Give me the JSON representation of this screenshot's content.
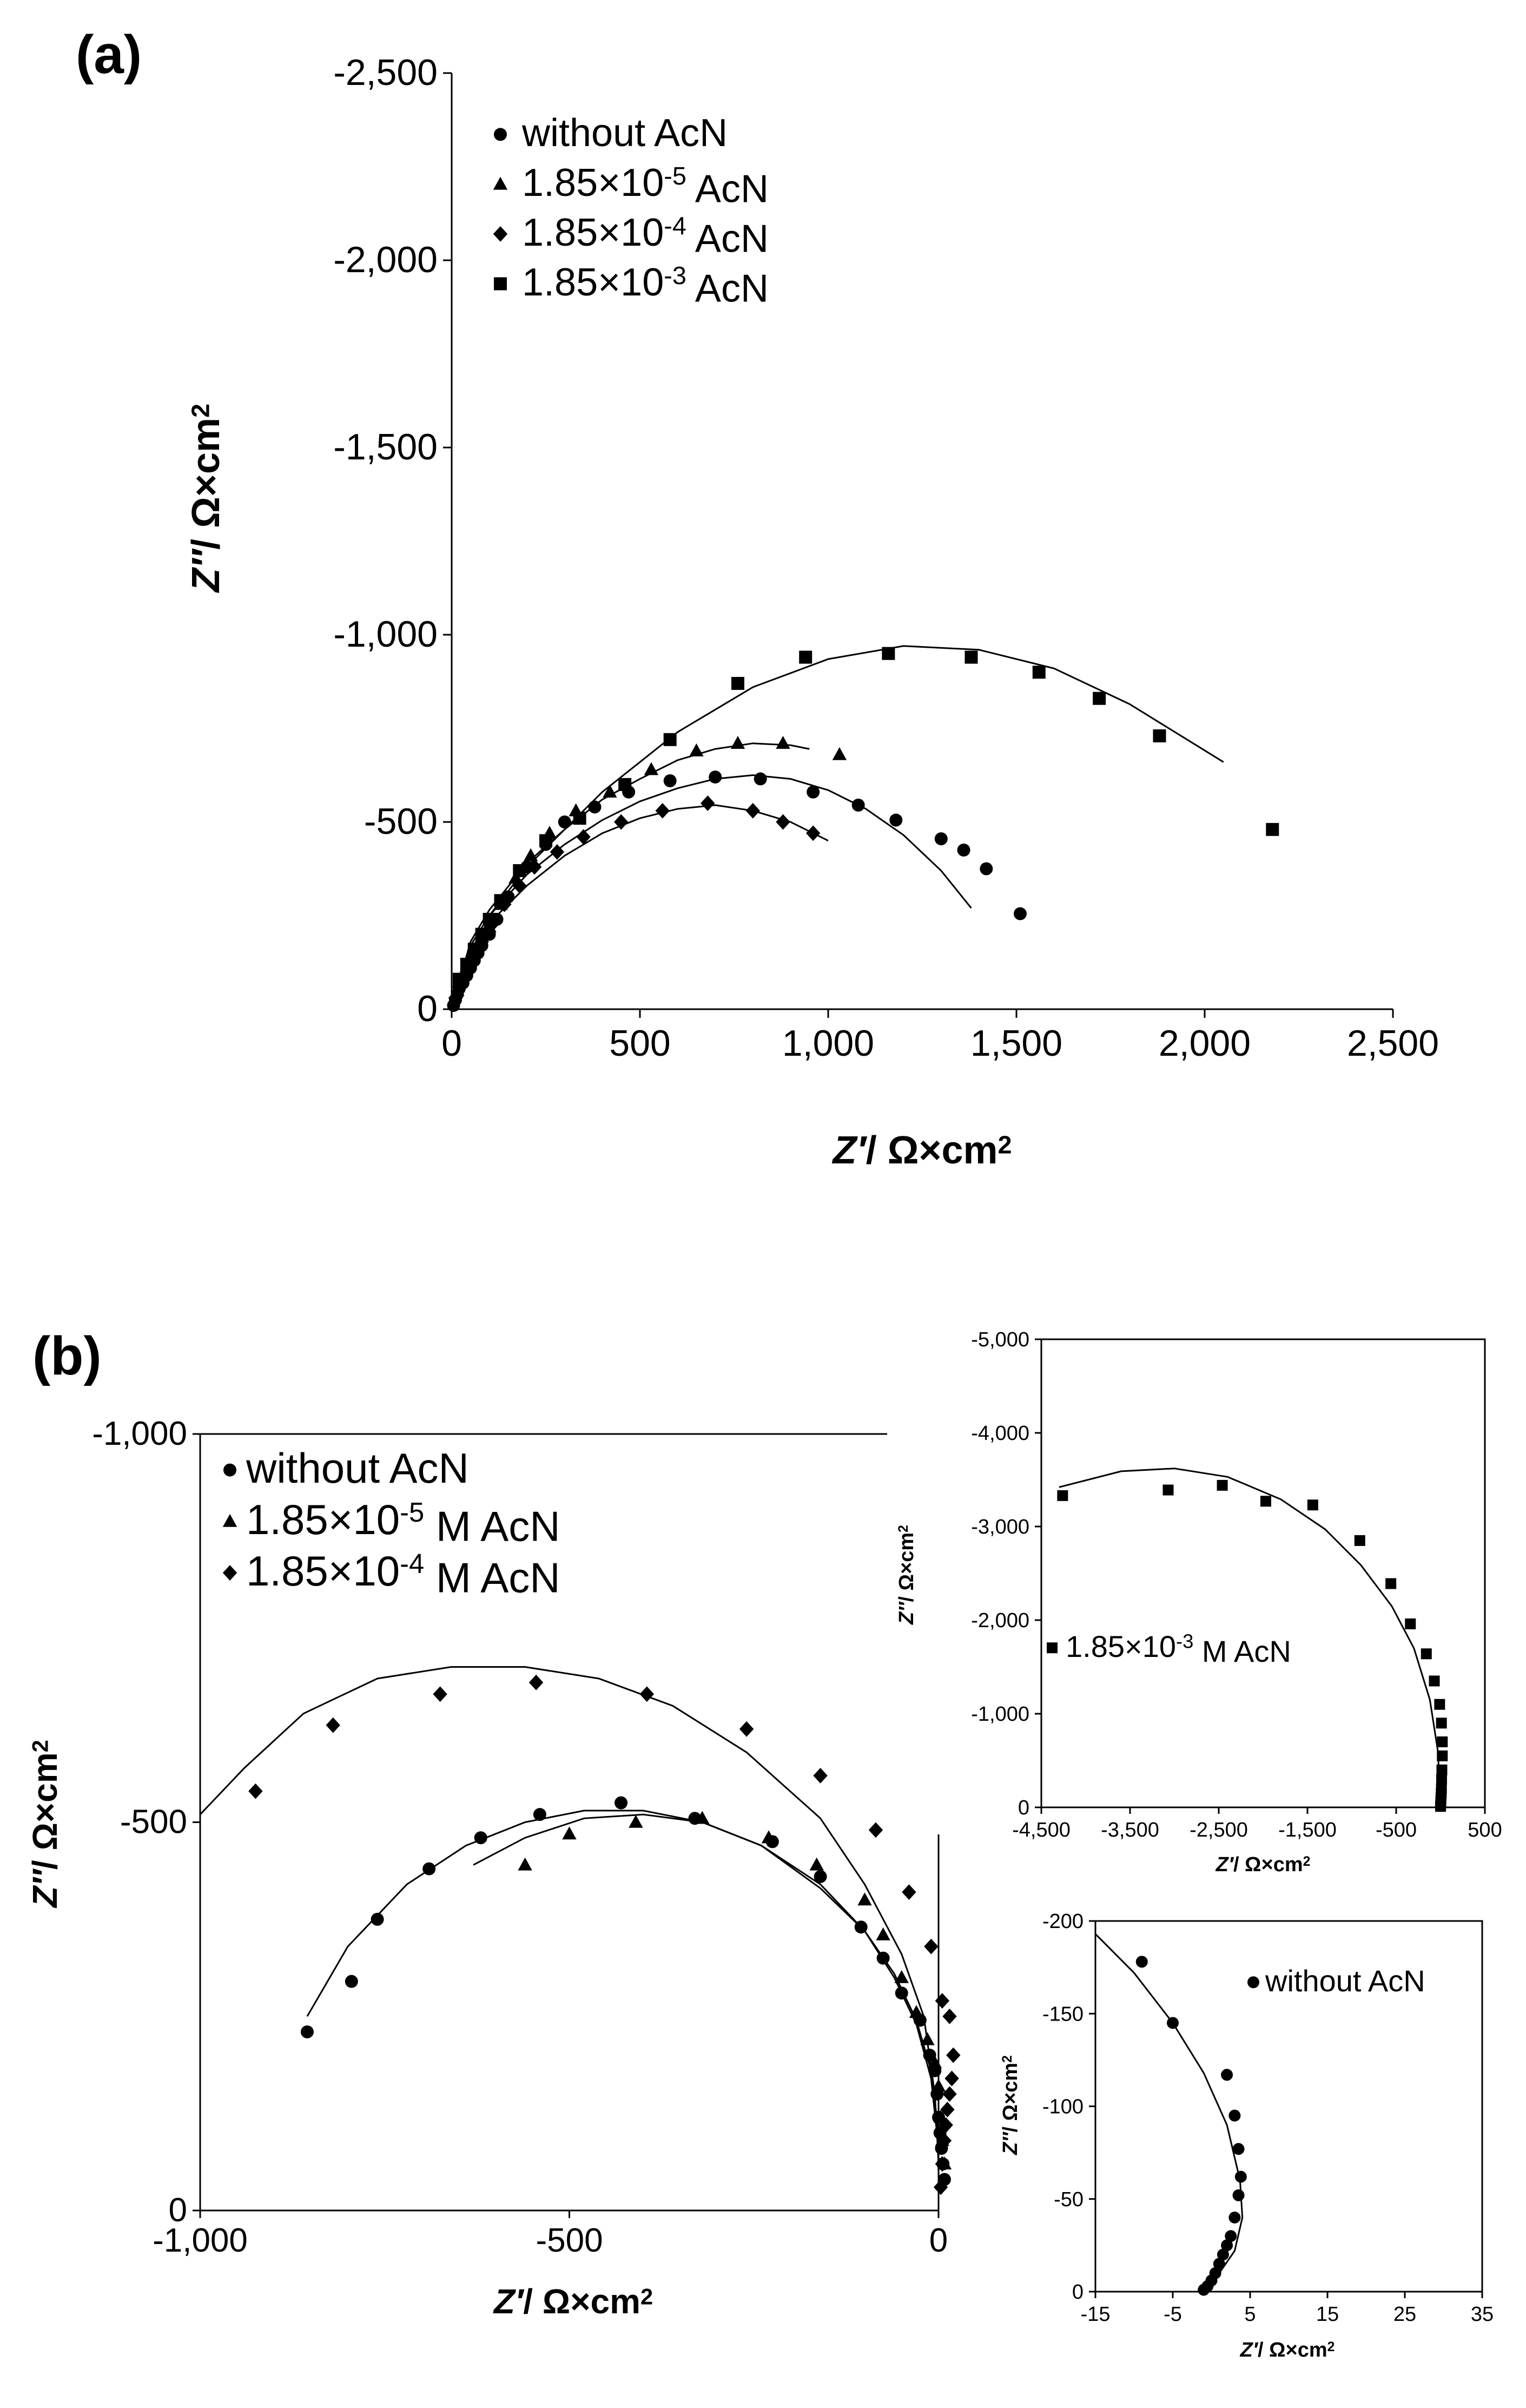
{
  "labels": {
    "panel_a": "(a)",
    "panel_b": "(b)"
  },
  "chart_data": [
    {
      "id": "a",
      "type": "scatter",
      "xlabel": "Z′/ Ω×cm²",
      "ylabel": "Z″/ Ω×cm²",
      "xlim": [
        0,
        2500
      ],
      "ylim": [
        0,
        -2500
      ],
      "xticks": [
        "0",
        "500",
        "1,000",
        "1,500",
        "2,000",
        "2,500"
      ],
      "yticks": [
        "0",
        "-500",
        "-1,000",
        "-1,500",
        "-2,000",
        "-2,500"
      ],
      "legend_position": "top-left",
      "series": [
        {
          "name": "without AcN",
          "marker": "circle",
          "x": [
            5,
            10,
            15,
            20,
            30,
            40,
            50,
            60,
            70,
            80,
            100,
            120,
            150,
            200,
            250,
            300,
            380,
            470,
            580,
            700,
            820,
            960,
            1080,
            1180,
            1300,
            1360,
            1420,
            1510
          ],
          "y": [
            -10,
            -25,
            -40,
            -55,
            -70,
            -90,
            -110,
            -130,
            -150,
            -170,
            -200,
            -240,
            -300,
            -380,
            -440,
            -500,
            -540,
            -580,
            -610,
            -620,
            -615,
            -580,
            -545,
            -505,
            -455,
            -425,
            -375,
            -255
          ],
          "fit_x": [
            0,
            50,
            100,
            200,
            300,
            400,
            500,
            600,
            700,
            800,
            900,
            1000,
            1100,
            1200,
            1300,
            1380
          ],
          "fit_y": [
            0,
            -170,
            -250,
            -360,
            -440,
            -505,
            -555,
            -590,
            -615,
            -625,
            -615,
            -585,
            -535,
            -465,
            -370,
            -270
          ]
        },
        {
          "name": "1.85×10⁻⁵ AcN",
          "marker": "triangle",
          "x": [
            15,
            30,
            50,
            70,
            100,
            130,
            170,
            210,
            260,
            330,
            420,
            530,
            650,
            760,
            880,
            1030
          ],
          "y": [
            -50,
            -90,
            -130,
            -170,
            -220,
            -280,
            -350,
            -410,
            -470,
            -530,
            -580,
            -640,
            -690,
            -710,
            -710,
            -680
          ],
          "fit_x": [
            0,
            50,
            100,
            200,
            300,
            400,
            500,
            600,
            700,
            800,
            900,
            950
          ],
          "fit_y": [
            0,
            -180,
            -265,
            -390,
            -480,
            -560,
            -615,
            -665,
            -695,
            -710,
            -705,
            -695
          ]
        },
        {
          "name": "1.85×10⁻⁴ AcN",
          "marker": "diamond",
          "x": [
            10,
            20,
            40,
            60,
            80,
            110,
            140,
            180,
            220,
            280,
            350,
            450,
            560,
            680,
            800,
            880,
            960
          ],
          "y": [
            -30,
            -60,
            -100,
            -140,
            -180,
            -230,
            -280,
            -330,
            -380,
            -420,
            -460,
            -500,
            -530,
            -550,
            -530,
            -500,
            -470
          ],
          "fit_x": [
            0,
            50,
            100,
            200,
            300,
            400,
            500,
            600,
            700,
            800,
            900,
            1000
          ],
          "fit_y": [
            0,
            -160,
            -230,
            -330,
            -410,
            -470,
            -510,
            -535,
            -545,
            -530,
            -500,
            -450
          ]
        },
        {
          "name": "1.85×10⁻³ AcN",
          "marker": "square",
          "x": [
            20,
            40,
            60,
            80,
            100,
            130,
            180,
            250,
            340,
            460,
            580,
            760,
            940,
            1160,
            1380,
            1560,
            1720,
            1880,
            2180
          ],
          "y": [
            -80,
            -120,
            -160,
            -200,
            -240,
            -290,
            -370,
            -450,
            -510,
            -600,
            -720,
            -870,
            -940,
            -950,
            -940,
            -900,
            -830,
            -730,
            -480
          ],
          "fit_x": [
            0,
            100,
            200,
            300,
            400,
            500,
            600,
            800,
            1000,
            1200,
            1400,
            1600,
            1800,
            2050
          ],
          "fit_y": [
            0,
            -250,
            -380,
            -480,
            -580,
            -660,
            -740,
            -860,
            -935,
            -970,
            -960,
            -910,
            -815,
            -660
          ]
        }
      ]
    },
    {
      "id": "b",
      "type": "scatter",
      "xlabel": "Z′/ Ω×cm²",
      "ylabel": "Z″/ Ω×cm²",
      "xlim": [
        -1000,
        0
      ],
      "ylim": [
        0,
        -1000
      ],
      "xticks": [
        "-1,000",
        "-500",
        "0"
      ],
      "yticks": [
        "0",
        "-500",
        "-1,000"
      ],
      "legend_position": "top-left",
      "series": [
        {
          "name": "without AcN",
          "marker": "circle",
          "x": [
            -855,
            -795,
            -760,
            -690,
            -620,
            -540,
            -430,
            -330,
            -225,
            -160,
            -105,
            -75,
            -50,
            -25,
            -12,
            -5,
            -2,
            0,
            2,
            4,
            6,
            8
          ],
          "y": [
            -230,
            -295,
            -375,
            -440,
            -480,
            -510,
            -525,
            -505,
            -475,
            -430,
            -365,
            -325,
            -280,
            -245,
            -200,
            -180,
            -150,
            -120,
            -100,
            -80,
            -60,
            -40
          ],
          "fit_x": [
            -855,
            -800,
            -720,
            -640,
            -560,
            -480,
            -400,
            -320,
            -240,
            -160,
            -100,
            -60,
            -30,
            -10,
            0
          ],
          "fit_y": [
            -250,
            -340,
            -420,
            -470,
            -500,
            -515,
            -515,
            -500,
            -470,
            -415,
            -360,
            -300,
            -240,
            -170,
            -80
          ]
        },
        {
          "name": "1.85×10⁻⁵ M AcN",
          "marker": "triangle",
          "x": [
            -560,
            -500,
            -410,
            -320,
            -230,
            -165,
            -100,
            -75,
            -50,
            -30,
            -15,
            -5,
            0,
            3,
            5,
            8
          ],
          "y": [
            -445,
            -485,
            -500,
            -505,
            -480,
            -445,
            -400,
            -355,
            -300,
            -255,
            -220,
            -190,
            -160,
            -120,
            -90,
            -60
          ],
          "fit_x": [
            -630,
            -560,
            -480,
            -400,
            -320,
            -240,
            -160,
            -100,
            -60,
            -30,
            -10,
            0
          ],
          "fit_y": [
            -445,
            -480,
            -505,
            -510,
            -500,
            -470,
            -420,
            -360,
            -305,
            -245,
            -180,
            -100
          ]
        },
        {
          "name": "1.85×10⁻⁴ M AcN",
          "marker": "diamond",
          "x": [
            -925,
            -820,
            -675,
            -545,
            -395,
            -260,
            -160,
            -85,
            -40,
            -10,
            5,
            15,
            20,
            18,
            15,
            12,
            10,
            8,
            5,
            3
          ],
          "y": [
            -540,
            -625,
            -665,
            -680,
            -665,
            -620,
            -560,
            -490,
            -410,
            -340,
            -270,
            -250,
            -200,
            -170,
            -150,
            -130,
            -110,
            -90,
            -60,
            -30
          ],
          "fit_x": [
            -1000,
            -940,
            -860,
            -760,
            -660,
            -560,
            -460,
            -360,
            -260,
            -160,
            -100,
            -50,
            -20,
            -5,
            0
          ],
          "fit_y": [
            -510,
            -570,
            -640,
            -685,
            -700,
            -700,
            -685,
            -650,
            -590,
            -505,
            -420,
            -330,
            -250,
            -150,
            -60
          ]
        }
      ]
    },
    {
      "id": "b-inset-1",
      "type": "scatter",
      "xlabel": "Z′/ Ω×cm²",
      "ylabel": "Z″/ Ω×cm²",
      "xlim": [
        -4500,
        500
      ],
      "ylim": [
        0,
        -5000
      ],
      "xticks": [
        "-4,500",
        "-3,500",
        "-2,500",
        "-1,500",
        "-500",
        "500"
      ],
      "yticks": [
        "0",
        "-1,000",
        "-2,000",
        "-3,000",
        "-4,000",
        "-5,000"
      ],
      "legend_position": "center-left",
      "series": [
        {
          "name": "1.85×10⁻³ M AcN",
          "marker": "square",
          "x": [
            -4260,
            -3070,
            -2460,
            -1970,
            -1440,
            -910,
            -560,
            -340,
            -160,
            -70,
            -10,
            10,
            20,
            20,
            15,
            12,
            10,
            8,
            5,
            3,
            2,
            0
          ],
          "y": [
            -3330,
            -3390,
            -3440,
            -3270,
            -3230,
            -2850,
            -2390,
            -1960,
            -1640,
            -1350,
            -1100,
            -900,
            -700,
            -550,
            -400,
            -300,
            -200,
            -150,
            -100,
            -60,
            -30,
            -10
          ],
          "fit_x": [
            -4300,
            -3600,
            -3000,
            -2400,
            -1800,
            -1300,
            -900,
            -550,
            -300,
            -120,
            -30,
            0
          ],
          "fit_y": [
            -3420,
            -3590,
            -3620,
            -3530,
            -3290,
            -2970,
            -2590,
            -2150,
            -1700,
            -1150,
            -600,
            -50
          ]
        }
      ]
    },
    {
      "id": "b-inset-2",
      "type": "scatter",
      "xlabel": "Z′/ Ω×cm²",
      "ylabel": "Z″/ Ω×cm²",
      "xlim": [
        -15,
        35
      ],
      "ylim": [
        0,
        -200
      ],
      "xticks": [
        "-15",
        "-5",
        "5",
        "15",
        "25",
        "35"
      ],
      "yticks": [
        "0",
        "-50",
        "-100",
        "-150",
        "-200"
      ],
      "legend_position": "top-right",
      "series": [
        {
          "name": "without AcN",
          "marker": "circle",
          "x": [
            -9,
            -5,
            2,
            3,
            3.5,
            3.8,
            3.5,
            3,
            2.5,
            2,
            1.5,
            1,
            0.5,
            0,
            -0.5,
            -1
          ],
          "y": [
            -178,
            -145,
            -117,
            -95,
            -77,
            -62,
            -52,
            -40,
            -30,
            -25,
            -20,
            -15,
            -10,
            -6,
            -3,
            -1
          ],
          "fit_x": [
            -15,
            -10,
            -5,
            -1,
            2,
            3.7,
            4,
            3,
            1,
            -0.5,
            -1
          ],
          "fit_y": [
            -193,
            -172,
            -145,
            -118,
            -90,
            -60,
            -40,
            -22,
            -10,
            -3,
            0
          ]
        }
      ]
    }
  ]
}
